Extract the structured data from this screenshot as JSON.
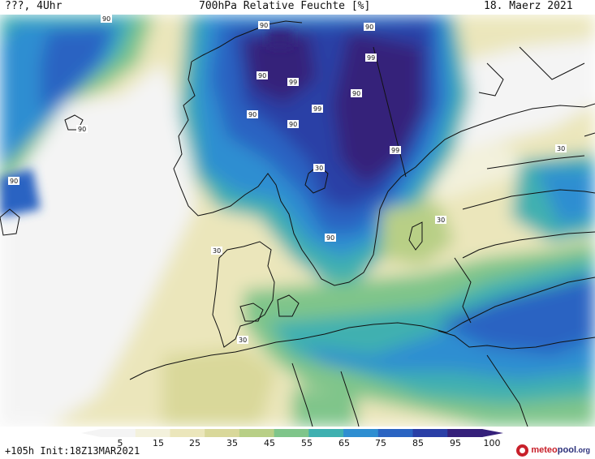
{
  "header": {
    "left": "???, 4Uhr",
    "title": "700hPa Relative Feuchte [%]",
    "date": "18. Maerz 2021"
  },
  "footer": {
    "run_info": "+105h Init:18Z13MAR2021",
    "logo_meteo": "meteo",
    "logo_pool": "pool",
    "logo_org": ".org"
  },
  "colorbar": {
    "ticks": [
      "5",
      "15",
      "25",
      "35",
      "45",
      "55",
      "65",
      "75",
      "85",
      "95",
      "100"
    ],
    "colors": [
      "#f4f4f4",
      "#f3f1dc",
      "#ebe6bb",
      "#d9d89a",
      "#b8cf86",
      "#7fc58a",
      "#3fb0b0",
      "#2e8ed1",
      "#2a64c2",
      "#2a3fa6",
      "#35207a"
    ]
  },
  "contour_labels": [
    "90",
    "90",
    "90",
    "90",
    "90",
    "99",
    "99",
    "90",
    "90",
    "90",
    "90",
    "99",
    "90",
    "99",
    "30",
    "30",
    "30",
    "30",
    "30"
  ]
}
